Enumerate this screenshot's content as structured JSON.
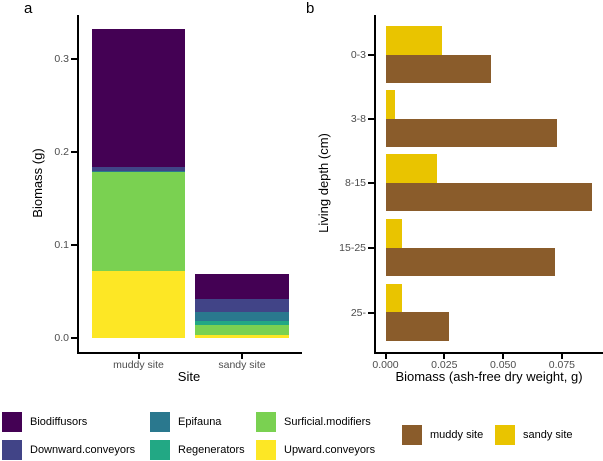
{
  "panels": [
    {
      "label": "a"
    },
    {
      "label": "b"
    }
  ],
  "chart_data": [
    {
      "type": "bar",
      "variant": "stacked-vertical",
      "title": "",
      "xlabel": "Site",
      "ylabel": "Biomass (g)",
      "categories": [
        "muddy site",
        "sandy site"
      ],
      "ylim": [
        0,
        0.34
      ],
      "yticks": [
        0.0,
        0.1,
        0.2,
        0.3
      ],
      "ytick_labels": [
        "0.0",
        "0.1",
        "0.2",
        "0.3"
      ],
      "grid": false,
      "series": [
        {
          "name": "Upward.conveyors",
          "color": "#fde725",
          "values": [
            0.072,
            0.003
          ]
        },
        {
          "name": "Surficial.modifiers",
          "color": "#7ad151",
          "values": [
            0.106,
            0.011
          ]
        },
        {
          "name": "Regenerators",
          "color": "#22a884",
          "values": [
            0.0,
            0.004
          ]
        },
        {
          "name": "Epifauna",
          "color": "#2a788e",
          "values": [
            0.002,
            0.01
          ]
        },
        {
          "name": "Downward.conveyors",
          "color": "#414487",
          "values": [
            0.004,
            0.014
          ]
        },
        {
          "name": "Biodiffusors",
          "color": "#440154",
          "values": [
            0.148,
            0.027
          ]
        }
      ]
    },
    {
      "type": "bar",
      "variant": "grouped-horizontal",
      "title": "",
      "xlabel": "Biomass (ash-free dry weight, g)",
      "ylabel": "Living depth (cm)",
      "categories": [
        "0-3",
        "3-8",
        "8-15",
        "15-25",
        "25-"
      ],
      "xlim": [
        0,
        0.092
      ],
      "xticks": [
        0.0,
        0.025,
        0.05,
        0.075
      ],
      "xtick_labels": [
        "0.000",
        "0.025",
        "0.050",
        "0.075"
      ],
      "grid": false,
      "series": [
        {
          "name": "sandy site",
          "color": "#e9c400",
          "values": [
            0.024,
            0.004,
            0.022,
            0.007,
            0.007
          ]
        },
        {
          "name": "muddy site",
          "color": "#8a5c2b",
          "values": [
            0.045,
            0.073,
            0.088,
            0.072,
            0.027
          ]
        }
      ]
    }
  ],
  "legends": {
    "functional_groups": [
      {
        "label": "Biodiffusors",
        "color": "#440154"
      },
      {
        "label": "Downward.conveyors",
        "color": "#414487"
      },
      {
        "label": "Epifauna",
        "color": "#2a788e"
      },
      {
        "label": "Regenerators",
        "color": "#22a884"
      },
      {
        "label": "Surficial.modifiers",
        "color": "#7ad151"
      },
      {
        "label": "Upward.conveyors",
        "color": "#fde725"
      }
    ],
    "sites": [
      {
        "label": "muddy site",
        "color": "#8a5c2b"
      },
      {
        "label": "sandy site",
        "color": "#e9c400"
      }
    ]
  }
}
